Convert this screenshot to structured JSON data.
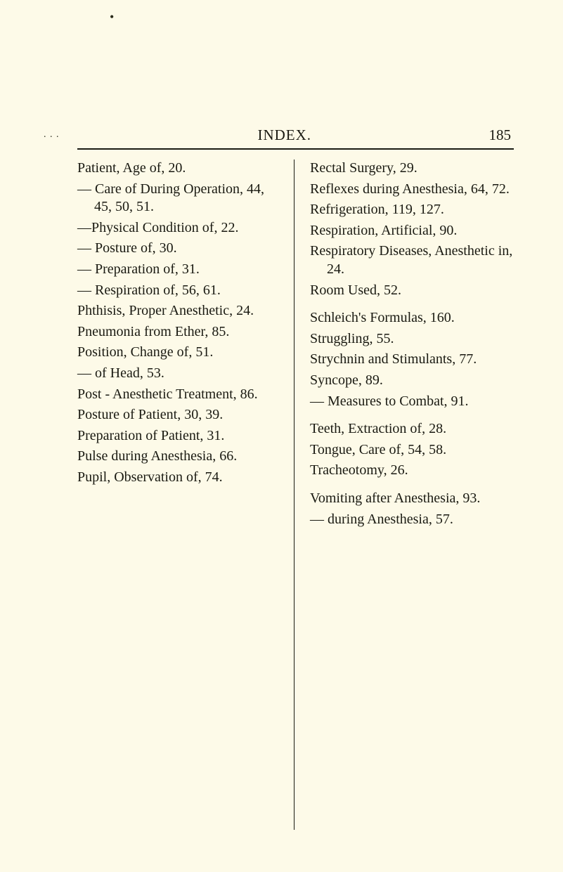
{
  "header": {
    "title": "INDEX.",
    "page_number": "185"
  },
  "marks": {
    "top": "•",
    "dots": ". . ."
  },
  "left_column": [
    "Patient, Age of, 20.",
    "— Care of During Operation, 44, 45, 50, 51.",
    "—Physical Condition of, 22.",
    "— Posture of, 30.",
    "— Preparation of, 31.",
    "— Respiration of, 56, 61.",
    "Phthisis, Proper Anesthetic, 24.",
    "Pneumonia from Ether, 85.",
    "Position, Change of, 51.",
    "— of Head, 53.",
    "Post - Anesthetic Treatment, 86.",
    "Posture of Patient, 30, 39.",
    "Preparation of Patient, 31.",
    "Pulse during Anesthesia, 66.",
    "Pupil, Observation of, 74."
  ],
  "right_groups": [
    [
      "Rectal Surgery, 29.",
      "Reflexes during Anesthesia, 64, 72.",
      "Refrigeration, 119, 127.",
      "Respiration, Artificial, 90.",
      "Respiratory Diseases, Anesthetic in, 24.",
      "Room Used, 52."
    ],
    [
      "Schleich's Formulas, 160.",
      "Struggling, 55.",
      "Strychnin and Stimulants, 77.",
      "Syncope, 89.",
      "— Measures to Combat, 91."
    ],
    [
      "Teeth, Extraction of, 28.",
      "Tongue, Care of, 54, 58.",
      "Tracheotomy, 26."
    ],
    [
      "Vomiting after Anesthesia, 93.",
      "— during Anesthesia, 57."
    ]
  ]
}
